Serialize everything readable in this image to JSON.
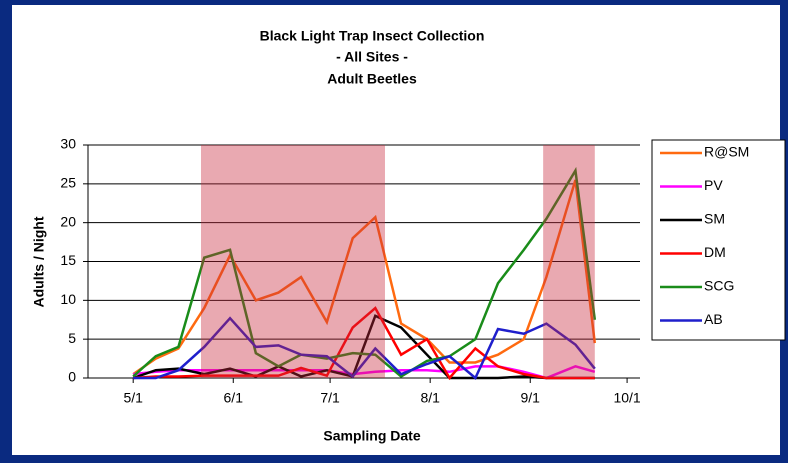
{
  "chart_data": {
    "type": "line",
    "title": [
      "Black Light Trap Insect Collection",
      "- All Sites -",
      "Adult Beetles"
    ],
    "xlabel": "Sampling Date",
    "ylabel": "Adults / Night",
    "x": [
      121,
      128,
      135,
      143,
      151,
      159,
      166,
      173,
      181,
      189,
      196,
      204,
      212,
      219,
      227,
      234,
      242,
      249,
      258,
      264
    ],
    "xlim": [
      107,
      278
    ],
    "xticks": [
      {
        "value": 121,
        "label": "5/1"
      },
      {
        "value": 152,
        "label": "6/1"
      },
      {
        "value": 182,
        "label": "7/1"
      },
      {
        "value": 213,
        "label": "8/1"
      },
      {
        "value": 244,
        "label": "9/1"
      },
      {
        "value": 274,
        "label": "10/1"
      }
    ],
    "ylim": [
      0,
      30
    ],
    "yticks": [
      0,
      5,
      10,
      15,
      20,
      25,
      30
    ],
    "grid": true,
    "shaded_ranges": [
      [
        142,
        199
      ],
      [
        248,
        264
      ]
    ],
    "shade_color": "#c8283c",
    "legend": "right",
    "series": [
      {
        "name": "R@SM",
        "color": "#ff6a10",
        "values": [
          0.5,
          2.5,
          3.8,
          9,
          15.8,
          10,
          11,
          13,
          7.2,
          18,
          20.7,
          7,
          5,
          2,
          2,
          3,
          5,
          13,
          25.5,
          4.5
        ]
      },
      {
        "name": "PV",
        "color": "#ff00ff",
        "values": [
          0.5,
          0.8,
          1,
          1,
          1,
          1,
          1,
          1,
          1,
          0.5,
          0.8,
          1,
          1,
          0.8,
          1.5,
          1.5,
          0.8,
          0,
          1.5,
          0.8
        ]
      },
      {
        "name": "SM",
        "color": "#000000",
        "values": [
          0,
          1,
          1.2,
          0.5,
          1.2,
          0.2,
          1.5,
          0.2,
          1,
          0.2,
          8,
          6.5,
          3,
          0,
          0,
          0,
          0.2,
          0,
          0,
          0
        ]
      },
      {
        "name": "DM",
        "color": "#ff0000",
        "values": [
          0,
          0.2,
          0.2,
          0.3,
          0.3,
          0.3,
          0.3,
          1.3,
          0.3,
          6.5,
          9,
          3,
          5,
          0,
          3.8,
          1.5,
          0.5,
          0,
          0,
          0
        ]
      },
      {
        "name": "SCG",
        "color": "#1a8c1a",
        "values": [
          0.2,
          2.8,
          4,
          15.5,
          16.5,
          3.2,
          1.5,
          3,
          2.5,
          3.2,
          3,
          0.2,
          2.2,
          2.8,
          5,
          12.2,
          16.5,
          20.5,
          26.7,
          7.5
        ]
      },
      {
        "name": "AB",
        "color": "#1f1fcc",
        "values": [
          0,
          0,
          1,
          4,
          7.7,
          4,
          4.2,
          3,
          2.8,
          0.2,
          3.8,
          0.5,
          1.8,
          2.8,
          0,
          6.3,
          5.7,
          7,
          4.3,
          1.2
        ]
      }
    ]
  }
}
